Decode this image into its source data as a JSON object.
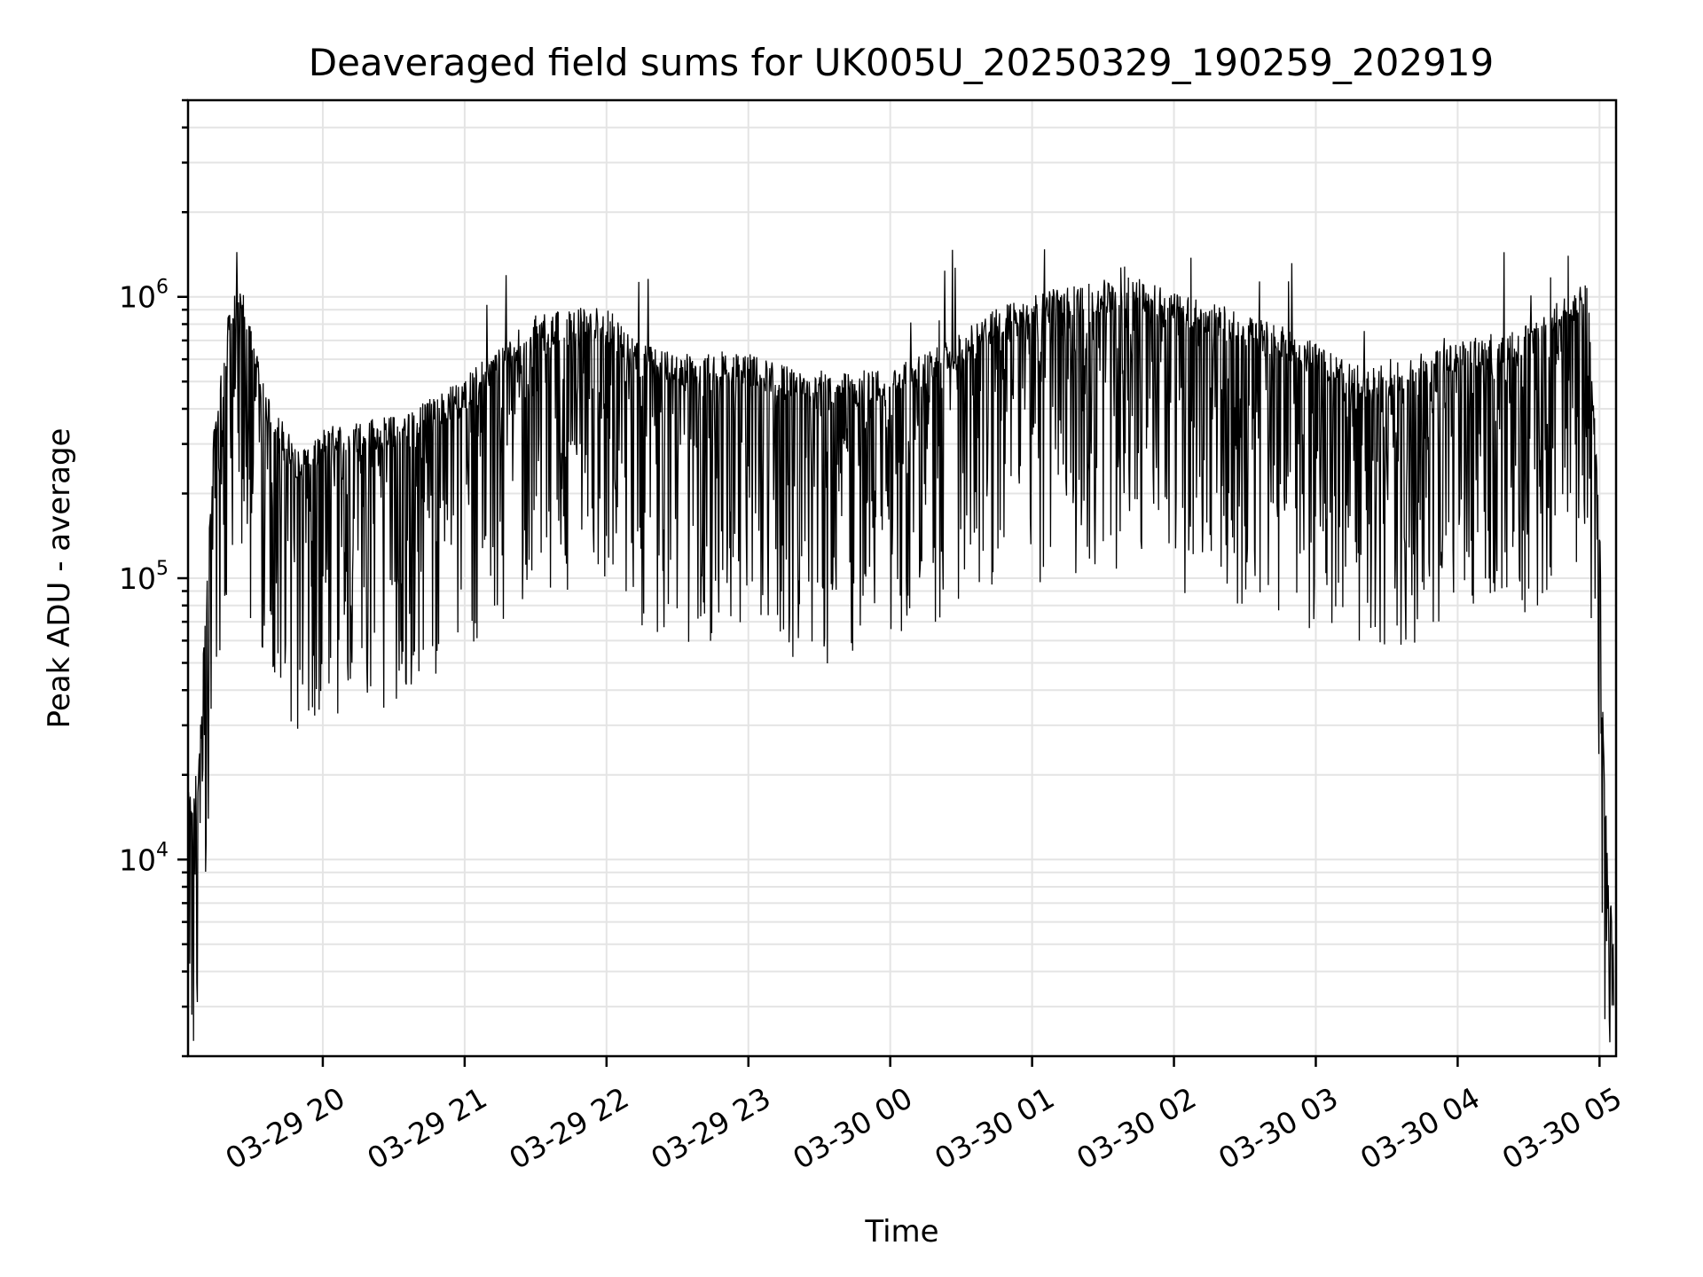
{
  "chart_data": {
    "type": "line",
    "title": "Deaveraged field sums for UK005U_20250329_190259_202919",
    "xlabel": "Time",
    "ylabel": "Peak ADU - average",
    "yscale": "log",
    "ylim": [
      2000,
      5000000
    ],
    "xlim": [
      "03-29 19:03",
      "03-30 05:07"
    ],
    "grid": true,
    "x_ticks": [
      "03-29 20",
      "03-29 21",
      "03-29 22",
      "03-29 23",
      "03-30 00",
      "03-30 01",
      "03-30 02",
      "03-30 03",
      "03-30 04",
      "03-30 05"
    ],
    "y_ticks": [
      {
        "base": "10",
        "exp": "4",
        "value": 10000
      },
      {
        "base": "10",
        "exp": "5",
        "value": 100000
      },
      {
        "base": "10",
        "exp": "6",
        "value": 1000000
      }
    ],
    "series": [
      {
        "color": "#000000",
        "x": [
          "03-29 19:03",
          "03-29 19:07",
          "03-29 19:10",
          "03-29 19:14",
          "03-29 19:20",
          "03-29 19:26",
          "03-29 19:33",
          "03-29 19:40",
          "03-29 19:50",
          "03-29 20:00",
          "03-29 20:15",
          "03-29 20:30",
          "03-29 20:45",
          "03-29 21:00",
          "03-29 21:15",
          "03-29 21:30",
          "03-29 21:45",
          "03-29 22:00",
          "03-29 22:15",
          "03-29 22:30",
          "03-29 22:45",
          "03-29 23:00",
          "03-29 23:15",
          "03-29 23:30",
          "03-29 23:45",
          "03-30 00:00",
          "03-30 00:15",
          "03-30 00:30",
          "03-30 00:45",
          "03-30 01:00",
          "03-30 01:15",
          "03-30 01:30",
          "03-30 01:45",
          "03-30 02:00",
          "03-30 02:15",
          "03-30 02:30",
          "03-30 02:45",
          "03-30 03:00",
          "03-30 03:15",
          "03-30 03:30",
          "03-30 03:45",
          "03-30 04:00",
          "03-30 04:15",
          "03-30 04:30",
          "03-30 04:45",
          "03-30 04:55",
          "03-30 05:00",
          "03-30 05:02",
          "03-30 05:04",
          "03-30 05:06"
        ],
        "y": [
          15000,
          18000,
          60000,
          300000,
          800000,
          1000000,
          500000,
          350000,
          250000,
          300000,
          320000,
          330000,
          380000,
          450000,
          600000,
          750000,
          800000,
          800000,
          600000,
          550000,
          560000,
          550000,
          500000,
          480000,
          470000,
          500000,
          550000,
          650000,
          800000,
          900000,
          950000,
          1000000,
          1050000,
          900000,
          850000,
          750000,
          700000,
          600000,
          500000,
          500000,
          550000,
          600000,
          650000,
          700000,
          900000,
          1000000,
          150000,
          20000,
          8000,
          5000
        ]
      }
    ]
  }
}
